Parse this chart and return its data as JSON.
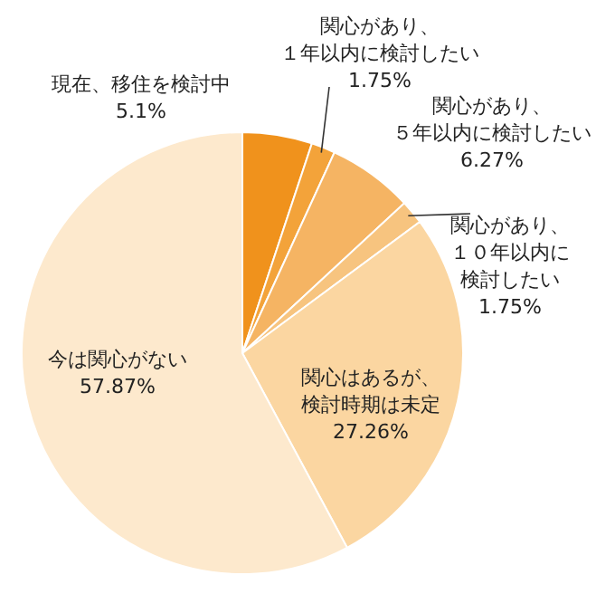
{
  "chart_data": {
    "type": "pie",
    "categories": [
      "現在、移住を検討中",
      "関心があり、１年以内に検討したい",
      "関心があり、５年以内に検討したい",
      "関心があり、１０年以内に検討したい",
      "関心はあるが、検討時期は未定",
      "今は関心がない"
    ],
    "values": [
      5.1,
      1.75,
      6.27,
      1.75,
      27.26,
      57.87
    ],
    "value_labels": [
      "5.1%",
      "1.75%",
      "6.27%",
      "1.75%",
      "27.26%",
      "57.87%"
    ],
    "colors": [
      "#f0921c",
      "#f3a33a",
      "#f5b463",
      "#f7c47f",
      "#fbd6a1",
      "#fde9cd"
    ]
  }
}
